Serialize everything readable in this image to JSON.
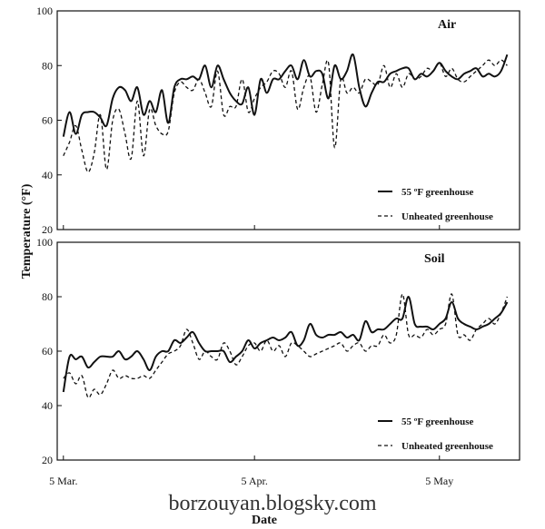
{
  "figure": {
    "ylabel": "Temperature (°F)",
    "xlabel": "Date",
    "watermark": "borzouyan.blogsky.com"
  },
  "chart_data": [
    {
      "type": "line",
      "title": "Air",
      "ylabel": "Temperature (°F)",
      "xlabel": "Date",
      "ylim": [
        20,
        100
      ],
      "yticks": [
        20,
        40,
        60,
        80,
        100
      ],
      "xlim": [
        -1,
        74
      ],
      "xticks": [
        {
          "day": 0,
          "label": "5 Mar."
        },
        {
          "day": 31,
          "label": "5 Apr."
        },
        {
          "day": 61,
          "label": "5 May"
        }
      ],
      "x_units": "days from 5 Mar.",
      "legend_position": "bottom-right",
      "series": [
        {
          "name": "55 ºF greenhouse",
          "style": "solid",
          "x": [
            0,
            1,
            2,
            3,
            4,
            5,
            6,
            7,
            8,
            9,
            10,
            11,
            12,
            13,
            14,
            15,
            16,
            17,
            18,
            19,
            20,
            21,
            22,
            23,
            24,
            25,
            26,
            27,
            28,
            29,
            30,
            31,
            32,
            33,
            34,
            35,
            36,
            37,
            38,
            39,
            40,
            41,
            42,
            43,
            44,
            45,
            46,
            47,
            48,
            49,
            50,
            51,
            52,
            53,
            54,
            55,
            56,
            57,
            58,
            59,
            60,
            61,
            62,
            63,
            64,
            65,
            66,
            67,
            68,
            69,
            70,
            71,
            72
          ],
          "y": [
            54,
            63,
            55,
            62,
            63,
            63,
            61,
            58,
            68,
            72,
            71,
            67,
            72,
            62,
            67,
            63,
            71,
            59,
            72,
            75,
            75,
            76,
            75,
            80,
            72,
            80,
            75,
            70,
            67,
            66,
            72,
            62,
            75,
            70,
            75,
            75,
            78,
            80,
            75,
            82,
            76,
            78,
            77,
            68,
            80,
            75,
            78,
            84,
            72,
            65,
            70,
            74,
            74,
            77,
            78,
            79,
            79,
            75,
            77,
            76,
            78,
            81,
            78,
            76,
            75,
            77,
            78,
            79,
            76,
            77,
            76,
            78,
            84
          ]
        },
        {
          "name": "Unheated greenhouse",
          "style": "dashed",
          "x": [
            0,
            1,
            2,
            3,
            4,
            5,
            6,
            7,
            8,
            9,
            10,
            11,
            12,
            13,
            14,
            15,
            16,
            17,
            18,
            19,
            20,
            21,
            22,
            23,
            24,
            25,
            26,
            27,
            28,
            29,
            30,
            31,
            32,
            33,
            34,
            35,
            36,
            37,
            38,
            39,
            40,
            41,
            42,
            43,
            44,
            45,
            46,
            47,
            48,
            49,
            50,
            51,
            52,
            53,
            54,
            55,
            56,
            57,
            58,
            59,
            60,
            61,
            62,
            63,
            64,
            65,
            66,
            67,
            68,
            69,
            70,
            71,
            72
          ],
          "y": [
            47,
            52,
            58,
            49,
            41,
            48,
            62,
            42,
            60,
            64,
            55,
            46,
            67,
            47,
            64,
            58,
            55,
            56,
            70,
            74,
            72,
            71,
            75,
            70,
            65,
            78,
            62,
            65,
            65,
            75,
            63,
            68,
            72,
            74,
            78,
            77,
            72,
            78,
            64,
            72,
            76,
            63,
            73,
            81,
            50,
            75,
            70,
            72,
            70,
            75,
            74,
            73,
            80,
            72,
            77,
            72,
            77,
            75,
            76,
            79,
            78,
            81,
            76,
            79,
            75,
            74,
            76,
            78,
            80,
            82,
            80,
            82,
            80
          ]
        }
      ]
    },
    {
      "type": "line",
      "title": "Soil",
      "ylabel": "Temperature (°F)",
      "xlabel": "Date",
      "ylim": [
        20,
        100
      ],
      "yticks": [
        20,
        40,
        60,
        80,
        100
      ],
      "xlim": [
        -1,
        74
      ],
      "xticks": [
        {
          "day": 0,
          "label": "5 Mar."
        },
        {
          "day": 31,
          "label": "5 Apr."
        },
        {
          "day": 61,
          "label": "5 May"
        }
      ],
      "x_units": "days from 5 Mar.",
      "legend_position": "bottom-right",
      "series": [
        {
          "name": "55 ºF greenhouse",
          "style": "solid",
          "x": [
            0,
            1,
            2,
            3,
            4,
            5,
            6,
            7,
            8,
            9,
            10,
            11,
            12,
            13,
            14,
            15,
            16,
            17,
            18,
            19,
            20,
            21,
            22,
            23,
            24,
            25,
            26,
            27,
            28,
            29,
            30,
            31,
            32,
            33,
            34,
            35,
            36,
            37,
            38,
            39,
            40,
            41,
            42,
            43,
            44,
            45,
            46,
            47,
            48,
            49,
            50,
            51,
            52,
            53,
            54,
            55,
            56,
            57,
            58,
            59,
            60,
            61,
            62,
            63,
            64,
            65,
            66,
            67,
            68,
            69,
            70,
            71,
            72
          ],
          "y": [
            45,
            58,
            57,
            58,
            54,
            56,
            58,
            58,
            58,
            60,
            57,
            58,
            60,
            57,
            53,
            58,
            60,
            60,
            64,
            63,
            65,
            67,
            63,
            60,
            60,
            60,
            60,
            56,
            58,
            60,
            64,
            61,
            63,
            64,
            65,
            64,
            65,
            67,
            62,
            64,
            70,
            66,
            65,
            66,
            66,
            67,
            65,
            66,
            64,
            71,
            67,
            68,
            68,
            70,
            72,
            72,
            80,
            70,
            69,
            69,
            68,
            70,
            72,
            78,
            72,
            70,
            69,
            68,
            69,
            70,
            72,
            74,
            78
          ]
        },
        {
          "name": "Unheated greenhouse",
          "style": "dashed",
          "x": [
            0,
            1,
            2,
            3,
            4,
            5,
            6,
            7,
            8,
            9,
            10,
            11,
            12,
            13,
            14,
            15,
            16,
            17,
            18,
            19,
            20,
            21,
            22,
            23,
            24,
            25,
            26,
            27,
            28,
            29,
            30,
            31,
            32,
            33,
            34,
            35,
            36,
            37,
            38,
            39,
            40,
            41,
            42,
            43,
            44,
            45,
            46,
            47,
            48,
            49,
            50,
            51,
            52,
            53,
            54,
            55,
            56,
            57,
            58,
            59,
            60,
            61,
            62,
            63,
            64,
            65,
            66,
            67,
            68,
            69,
            70,
            71,
            72
          ],
          "y": [
            50,
            52,
            48,
            51,
            43,
            46,
            44,
            48,
            53,
            50,
            51,
            50,
            50,
            51,
            50,
            53,
            56,
            59,
            60,
            62,
            68,
            63,
            57,
            60,
            58,
            57,
            63,
            60,
            55,
            58,
            62,
            63,
            60,
            64,
            60,
            62,
            58,
            63,
            62,
            60,
            58,
            59,
            60,
            61,
            62,
            63,
            60,
            62,
            63,
            60,
            62,
            62,
            66,
            63,
            66,
            81,
            66,
            66,
            65,
            68,
            66,
            68,
            70,
            81,
            66,
            66,
            64,
            68,
            70,
            72,
            70,
            74,
            80
          ]
        }
      ]
    }
  ]
}
